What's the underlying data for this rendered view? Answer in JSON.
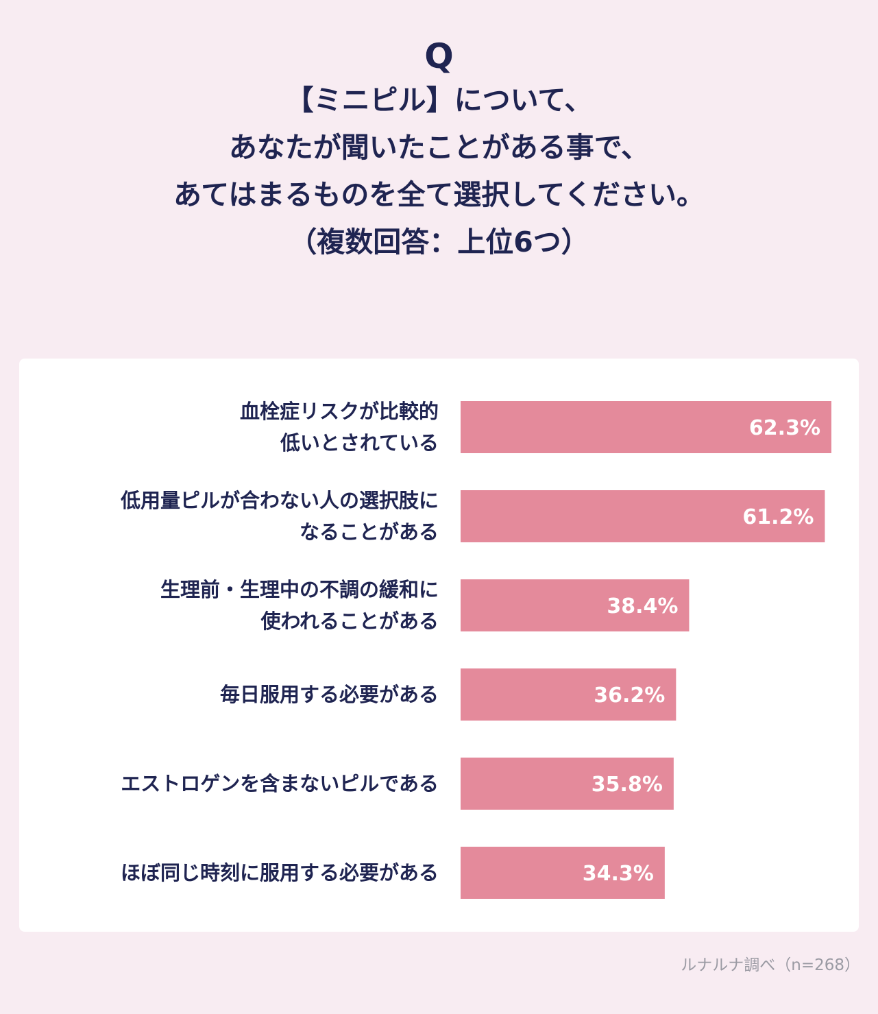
{
  "question": {
    "q_mark": "Q",
    "lines": [
      "【ミニピル】について、",
      "あなたが聞いたことがある事で、",
      "あてはまるものを全て選択してください。",
      "（複数回答：上位6つ）"
    ]
  },
  "chart_data": {
    "type": "bar",
    "orientation": "horizontal",
    "categories": [
      [
        "血栓症リスクが比較的",
        "低いとされている"
      ],
      [
        "低用量ピルが合わない人の選択肢に",
        "なることがある"
      ],
      [
        "生理前・生理中の不調の緩和に",
        "使われることがある"
      ],
      [
        "毎日服用する必要がある"
      ],
      [
        "エストロゲンを含まないピルである"
      ],
      [
        "ほぼ同じ時刻に服用する必要がある"
      ]
    ],
    "values": [
      62.3,
      61.2,
      38.4,
      36.2,
      35.8,
      34.3
    ],
    "value_labels": [
      "62.3%",
      "61.2%",
      "38.4%",
      "36.2%",
      "35.8%",
      "34.3%"
    ],
    "xlim": [
      0,
      62.3
    ],
    "bar_color": "#e48a9b",
    "value_label_color": "#ffffff"
  },
  "footer": {
    "source": "ルナルナ調べ（n=268）"
  },
  "colors": {
    "background": "#f8ecf2",
    "card": "#ffffff",
    "text": "#1f2451",
    "muted_text": "#9a9aa3"
  }
}
